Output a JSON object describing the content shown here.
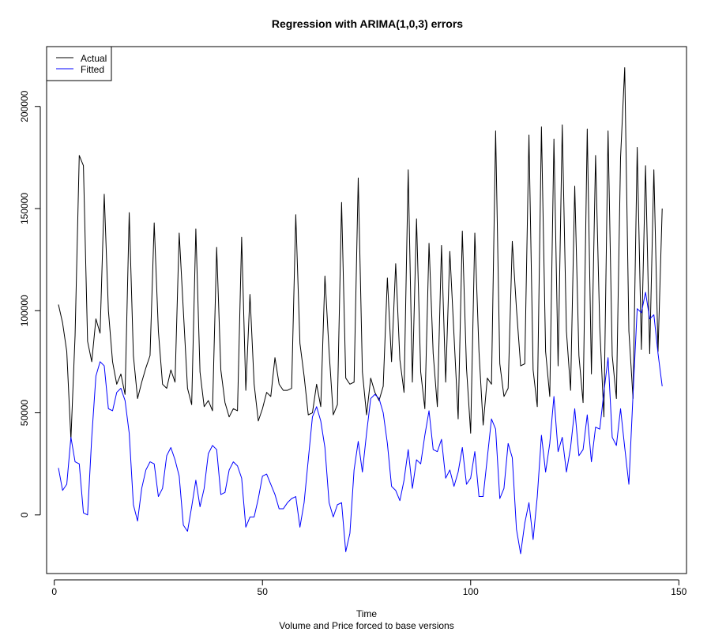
{
  "chart_data": {
    "type": "line",
    "title": "Regression with ARIMA(1,0,3) errors",
    "xlabel": "Time",
    "sublabel": "Volume and Price forced to base versions",
    "ylabel": "",
    "xlim": [
      -1.84,
      151.84
    ],
    "ylim": [
      -28700,
      229300
    ],
    "x_ticks": [
      0,
      50,
      100,
      150
    ],
    "x_tick_labels": [
      "0",
      "50",
      "100",
      "150"
    ],
    "y_ticks": [
      0,
      50000,
      100000,
      150000,
      200000
    ],
    "y_tick_labels": [
      "0",
      "50000",
      "100000",
      "150000",
      "200000"
    ],
    "legend_position": "top-left",
    "grid": false,
    "series": [
      {
        "name": "Actual",
        "color": "#000000",
        "x": [
          1,
          2,
          3,
          4,
          5,
          6,
          7,
          8,
          9,
          10,
          11,
          12,
          13,
          14,
          15,
          16,
          17,
          18,
          19,
          20,
          21,
          22,
          23,
          24,
          25,
          26,
          27,
          28,
          29,
          30,
          31,
          32,
          33,
          34,
          35,
          36,
          37,
          38,
          39,
          40,
          41,
          42,
          43,
          44,
          45,
          46,
          47,
          48,
          49,
          50,
          51,
          52,
          53,
          54,
          55,
          56,
          57,
          58,
          59,
          60,
          61,
          62,
          63,
          64,
          65,
          66,
          67,
          68,
          69,
          70,
          71,
          72,
          73,
          74,
          75,
          76,
          77,
          78,
          79,
          80,
          81,
          82,
          83,
          84,
          85,
          86,
          87,
          88,
          89,
          90,
          91,
          92,
          93,
          94,
          95,
          96,
          97,
          98,
          99,
          100,
          101,
          102,
          103,
          104,
          105,
          106,
          107,
          108,
          109,
          110,
          111,
          112,
          113,
          114,
          115,
          116,
          117,
          118,
          119,
          120,
          121,
          122,
          123,
          124,
          125,
          126,
          127,
          128,
          129,
          130,
          131,
          132,
          133,
          134,
          135,
          136,
          137,
          138,
          139,
          140,
          141,
          142,
          143,
          144,
          145,
          146
        ],
        "values": [
          103000,
          94000,
          80000,
          37000,
          88000,
          176000,
          171000,
          85000,
          75000,
          96000,
          89000,
          157000,
          100000,
          75000,
          64000,
          69000,
          59000,
          148000,
          78000,
          57000,
          65000,
          72000,
          78000,
          143000,
          90000,
          64000,
          62000,
          71000,
          65000,
          138000,
          100000,
          62000,
          54000,
          140000,
          70000,
          53000,
          56000,
          51000,
          131000,
          71000,
          55000,
          48000,
          52000,
          51000,
          136000,
          61000,
          108000,
          64000,
          46000,
          52000,
          60000,
          58000,
          77000,
          64000,
          61000,
          61000,
          62000,
          147000,
          84000,
          68000,
          49000,
          50000,
          64000,
          53000,
          117000,
          80000,
          49000,
          54000,
          153000,
          67000,
          64000,
          65000,
          165000,
          70000,
          49000,
          67000,
          60000,
          56000,
          63000,
          116000,
          75000,
          123000,
          76000,
          60000,
          169000,
          65000,
          145000,
          70000,
          52000,
          133000,
          79000,
          53000,
          132000,
          65000,
          129000,
          88000,
          47000,
          139000,
          72000,
          40000,
          138000,
          80000,
          44000,
          67000,
          64000,
          188000,
          74000,
          58000,
          62000,
          134000,
          101000,
          73000,
          74000,
          186000,
          71000,
          53000,
          190000,
          80000,
          58000,
          184000,
          73000,
          191000,
          90000,
          61000,
          161000,
          78000,
          55000,
          189000,
          69000,
          176000,
          92000,
          48000,
          188000,
          78000,
          57000,
          175000,
          219000,
          90000,
          57000,
          180000,
          81000,
          171000,
          79000,
          169000,
          80000,
          150000
        ]
      },
      {
        "name": "Fitted",
        "color": "#0000ff",
        "x": [
          1,
          2,
          3,
          4,
          5,
          6,
          7,
          8,
          9,
          10,
          11,
          12,
          13,
          14,
          15,
          16,
          17,
          18,
          19,
          20,
          21,
          22,
          23,
          24,
          25,
          26,
          27,
          28,
          29,
          30,
          31,
          32,
          33,
          34,
          35,
          36,
          37,
          38,
          39,
          40,
          41,
          42,
          43,
          44,
          45,
          46,
          47,
          48,
          49,
          50,
          51,
          52,
          53,
          54,
          55,
          56,
          57,
          58,
          59,
          60,
          61,
          62,
          63,
          64,
          65,
          66,
          67,
          68,
          69,
          70,
          71,
          72,
          73,
          74,
          75,
          76,
          77,
          78,
          79,
          80,
          81,
          82,
          83,
          84,
          85,
          86,
          87,
          88,
          89,
          90,
          91,
          92,
          93,
          94,
          95,
          96,
          97,
          98,
          99,
          100,
          101,
          102,
          103,
          104,
          105,
          106,
          107,
          108,
          109,
          110,
          111,
          112,
          113,
          114,
          115,
          116,
          117,
          118,
          119,
          120,
          121,
          122,
          123,
          124,
          125,
          126,
          127,
          128,
          129,
          130,
          131,
          132,
          133,
          134,
          135,
          136,
          137,
          138,
          139,
          140,
          141,
          142,
          143,
          144,
          145,
          146
        ],
        "values": [
          23000,
          12000,
          15000,
          38000,
          26000,
          25000,
          1000,
          0,
          38000,
          68000,
          75000,
          73000,
          52000,
          51000,
          60000,
          62000,
          56000,
          40000,
          5000,
          -3000,
          13000,
          22000,
          26000,
          25000,
          9000,
          13000,
          29000,
          33000,
          27000,
          19000,
          -5000,
          -8000,
          4000,
          17000,
          4000,
          13000,
          30000,
          34000,
          32000,
          10000,
          11000,
          22000,
          26000,
          24000,
          18000,
          -6000,
          -1000,
          -1000,
          8000,
          19000,
          20000,
          15000,
          10000,
          3000,
          3000,
          6000,
          8000,
          9000,
          -6000,
          6000,
          27000,
          48000,
          53000,
          46000,
          33000,
          6000,
          -1000,
          5000,
          6000,
          -18000,
          -9000,
          22000,
          36000,
          21000,
          40000,
          57000,
          59000,
          57000,
          50000,
          35000,
          14000,
          12000,
          7000,
          17000,
          32000,
          13000,
          27000,
          25000,
          39000,
          51000,
          32000,
          31000,
          37000,
          18000,
          22000,
          14000,
          21000,
          33000,
          15000,
          18000,
          31000,
          9000,
          9000,
          28000,
          47000,
          42000,
          8000,
          13000,
          35000,
          28000,
          -7000,
          -19000,
          -4000,
          6000,
          -12000,
          9000,
          39000,
          21000,
          35000,
          58000,
          31000,
          38000,
          21000,
          33000,
          52000,
          29000,
          32000,
          49000,
          26000,
          43000,
          42000,
          60000,
          77000,
          38000,
          34000,
          52000,
          33000,
          15000,
          59000,
          101000,
          99000,
          109000,
          96000,
          98000,
          79000,
          63000
        ]
      }
    ]
  }
}
